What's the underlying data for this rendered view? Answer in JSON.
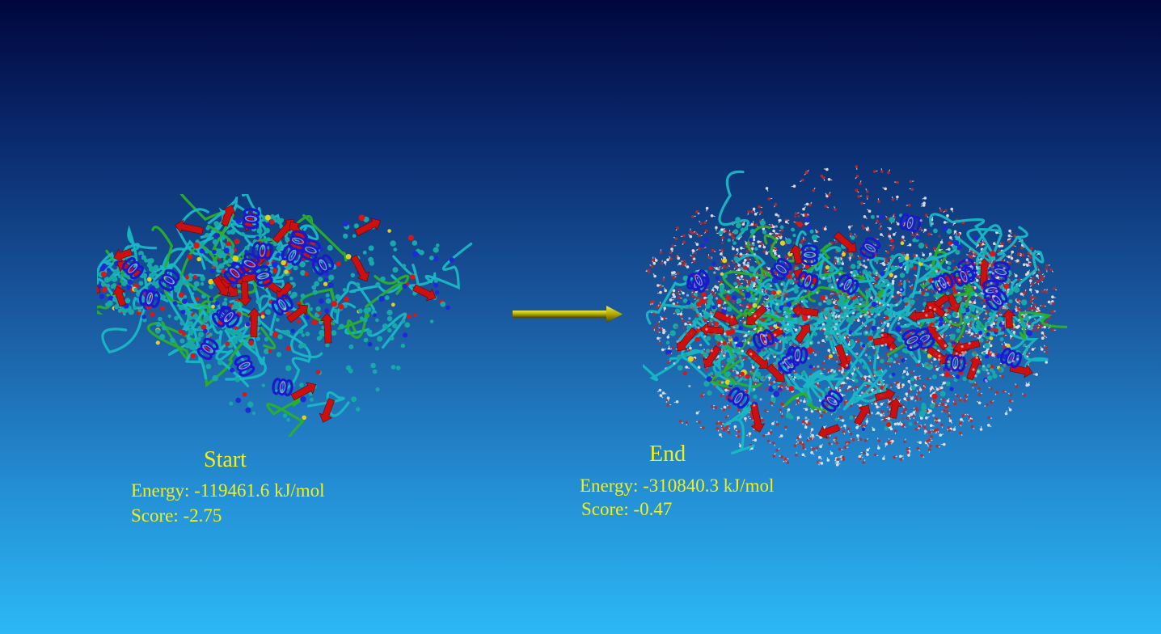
{
  "start": {
    "title": "Start",
    "energy": "Energy: -119461.6 kJ/mol",
    "score": "Score: -2.75"
  },
  "end": {
    "title": "End",
    "energy": "Energy: -310840.3 kJ/mol",
    "score": "Score: -0.47"
  },
  "colors": {
    "text": "#f2ef1c",
    "arrow": "#a8a000",
    "backbone": "#19b8c4",
    "helix": "#1a1acc",
    "sheet": "#cc1010",
    "coil": "#2ab02a",
    "water": "#b04848"
  }
}
